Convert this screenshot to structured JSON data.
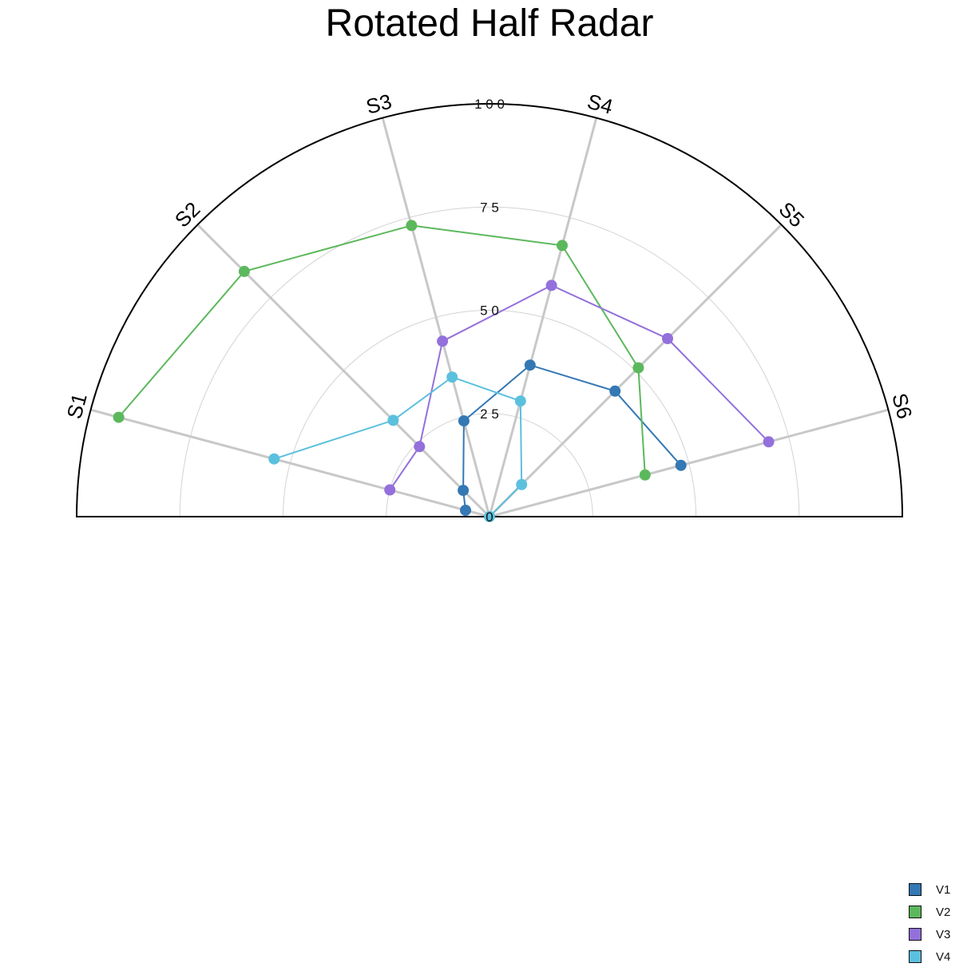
{
  "chart_data": {
    "type": "radar",
    "title": "Rotated Half Radar",
    "axes": [
      "S1",
      "S2",
      "S3",
      "S4",
      "S5",
      "S6"
    ],
    "rmax": 100,
    "radial_ticks": [
      0,
      25,
      50,
      75,
      100
    ],
    "radial_tick_labels": [
      "0",
      "2 5",
      "5 0",
      "7 5",
      "1 0 0"
    ],
    "grid": true,
    "legend_position": "bottom-right",
    "series": [
      {
        "name": "V1",
        "color": "#3478b4",
        "values": [
          6,
          9,
          24,
          38,
          43,
          48
        ]
      },
      {
        "name": "V2",
        "color": "#5cb85c",
        "values": [
          93,
          84,
          73,
          68,
          51,
          39
        ]
      },
      {
        "name": "V3",
        "color": "#9370db",
        "values": [
          25,
          24,
          44,
          58,
          61,
          70
        ]
      },
      {
        "name": "V4",
        "color": "#5bc0de",
        "values": [
          54,
          33,
          35,
          29,
          11,
          0
        ]
      }
    ]
  }
}
